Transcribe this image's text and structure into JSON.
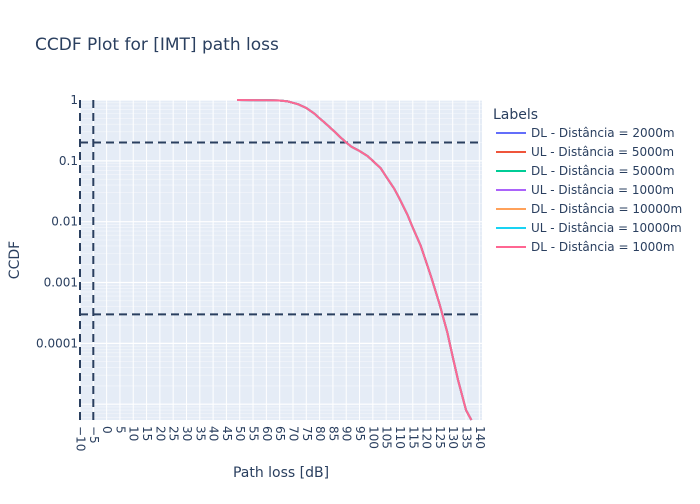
{
  "chart_data": {
    "type": "line",
    "title": "CCDF Plot for [IMT] path loss",
    "xlabel": "Path loss [dB]",
    "ylabel": "CCDF",
    "xlim": [
      -10,
      141
    ],
    "ylim": [
      5.5e-06,
      1.0
    ],
    "y_scale": "log",
    "grid": true,
    "x_ticks": [
      -10,
      -5,
      0,
      5,
      10,
      15,
      20,
      25,
      30,
      35,
      40,
      45,
      50,
      55,
      60,
      65,
      70,
      75,
      80,
      85,
      90,
      95,
      100,
      105,
      110,
      115,
      120,
      125,
      130,
      135,
      140
    ],
    "x_tick_labels": [
      "−10",
      "−5",
      "0",
      "5",
      "10",
      "15",
      "20",
      "25",
      "30",
      "35",
      "40",
      "45",
      "50",
      "55",
      "60",
      "65",
      "70",
      "75",
      "80",
      "85",
      "90",
      "95",
      "100",
      "105",
      "110",
      "115",
      "120",
      "125",
      "130",
      "135",
      "140"
    ],
    "y_ticks": [
      1,
      0.1,
      0.01,
      0.001,
      0.0001
    ],
    "y_tick_labels": [
      "1",
      "0.1",
      "0.01",
      "0.001",
      "0.0001"
    ],
    "reference_lines": {
      "vertical": [
        -10,
        -5
      ],
      "horizontal": [
        0.2,
        0.0003
      ]
    },
    "legend": {
      "title": "Labels",
      "position": "right"
    },
    "x": [
      49,
      55,
      60,
      65,
      68,
      70,
      72,
      75,
      78,
      80,
      82,
      85,
      88,
      90,
      92,
      95,
      98,
      100,
      103,
      105,
      108,
      110,
      113,
      115,
      118,
      120,
      122,
      125,
      128,
      130,
      132,
      135,
      137
    ],
    "series": [
      {
        "name": "DL - Distância = 2000m",
        "color": "#636efa",
        "values": [
          1.0,
          0.995,
          0.99,
          0.98,
          0.95,
          0.9,
          0.85,
          0.74,
          0.6,
          0.5,
          0.42,
          0.32,
          0.24,
          0.2,
          0.17,
          0.145,
          0.12,
          0.1,
          0.075,
          0.055,
          0.035,
          0.024,
          0.013,
          0.008,
          0.004,
          0.0022,
          0.0012,
          0.00045,
          0.00015,
          6e-05,
          2.5e-05,
          8e-06,
          3.5e-06
        ]
      },
      {
        "name": "UL - Distância = 5000m",
        "color": "#ef553b",
        "values": [
          1.0,
          0.995,
          0.99,
          0.98,
          0.95,
          0.9,
          0.85,
          0.74,
          0.6,
          0.5,
          0.42,
          0.32,
          0.24,
          0.2,
          0.17,
          0.145,
          0.12,
          0.1,
          0.075,
          0.055,
          0.035,
          0.024,
          0.013,
          0.008,
          0.004,
          0.0022,
          0.0012,
          0.00045,
          0.00015,
          6e-05,
          2.5e-05,
          8e-06,
          3.5e-06
        ]
      },
      {
        "name": "DL - Distância = 5000m",
        "color": "#00cc96",
        "values": [
          1.0,
          0.995,
          0.99,
          0.98,
          0.95,
          0.9,
          0.85,
          0.74,
          0.6,
          0.5,
          0.42,
          0.32,
          0.24,
          0.2,
          0.17,
          0.145,
          0.12,
          0.1,
          0.075,
          0.055,
          0.035,
          0.024,
          0.013,
          0.008,
          0.004,
          0.0022,
          0.0012,
          0.00045,
          0.00015,
          6e-05,
          2.5e-05,
          8e-06,
          3.5e-06
        ]
      },
      {
        "name": "UL - Distância = 1000m",
        "color": "#ab63fa",
        "values": [
          1.0,
          0.995,
          0.99,
          0.98,
          0.95,
          0.9,
          0.85,
          0.74,
          0.6,
          0.5,
          0.42,
          0.32,
          0.24,
          0.2,
          0.17,
          0.145,
          0.12,
          0.1,
          0.075,
          0.055,
          0.035,
          0.024,
          0.013,
          0.008,
          0.004,
          0.0022,
          0.0012,
          0.00045,
          0.00015,
          6e-05,
          2.5e-05,
          8e-06,
          3.5e-06
        ]
      },
      {
        "name": "DL - Distância = 10000m",
        "color": "#ffa15a",
        "values": [
          1.0,
          0.995,
          0.99,
          0.98,
          0.95,
          0.9,
          0.85,
          0.74,
          0.6,
          0.5,
          0.42,
          0.32,
          0.24,
          0.2,
          0.17,
          0.145,
          0.12,
          0.1,
          0.075,
          0.055,
          0.035,
          0.024,
          0.013,
          0.008,
          0.004,
          0.0022,
          0.0012,
          0.00045,
          0.00015,
          6e-05,
          2.5e-05,
          8e-06,
          3.5e-06
        ]
      },
      {
        "name": "UL - Distância = 10000m",
        "color": "#19d3f3",
        "values": [
          1.0,
          0.995,
          0.99,
          0.98,
          0.95,
          0.9,
          0.85,
          0.74,
          0.6,
          0.5,
          0.42,
          0.32,
          0.24,
          0.2,
          0.17,
          0.145,
          0.12,
          0.1,
          0.075,
          0.055,
          0.035,
          0.024,
          0.013,
          0.008,
          0.004,
          0.0022,
          0.0012,
          0.00045,
          0.00015,
          6e-05,
          2.5e-05,
          8e-06,
          3.5e-06
        ]
      },
      {
        "name": "DL - Distância = 1000m",
        "color": "#ff6692",
        "values": [
          1.0,
          0.995,
          0.99,
          0.98,
          0.95,
          0.9,
          0.85,
          0.74,
          0.6,
          0.5,
          0.42,
          0.32,
          0.24,
          0.2,
          0.17,
          0.145,
          0.12,
          0.1,
          0.075,
          0.055,
          0.035,
          0.024,
          0.013,
          0.008,
          0.004,
          0.0022,
          0.0012,
          0.00045,
          0.00015,
          6e-05,
          2.5e-05,
          8e-06,
          3.5e-06
        ]
      }
    ],
    "colors": {
      "plot_background": "#e5ecf6",
      "gridline": "#ffffff",
      "reference_line": "#2a3f5f",
      "text": "#2a3f5f"
    }
  }
}
